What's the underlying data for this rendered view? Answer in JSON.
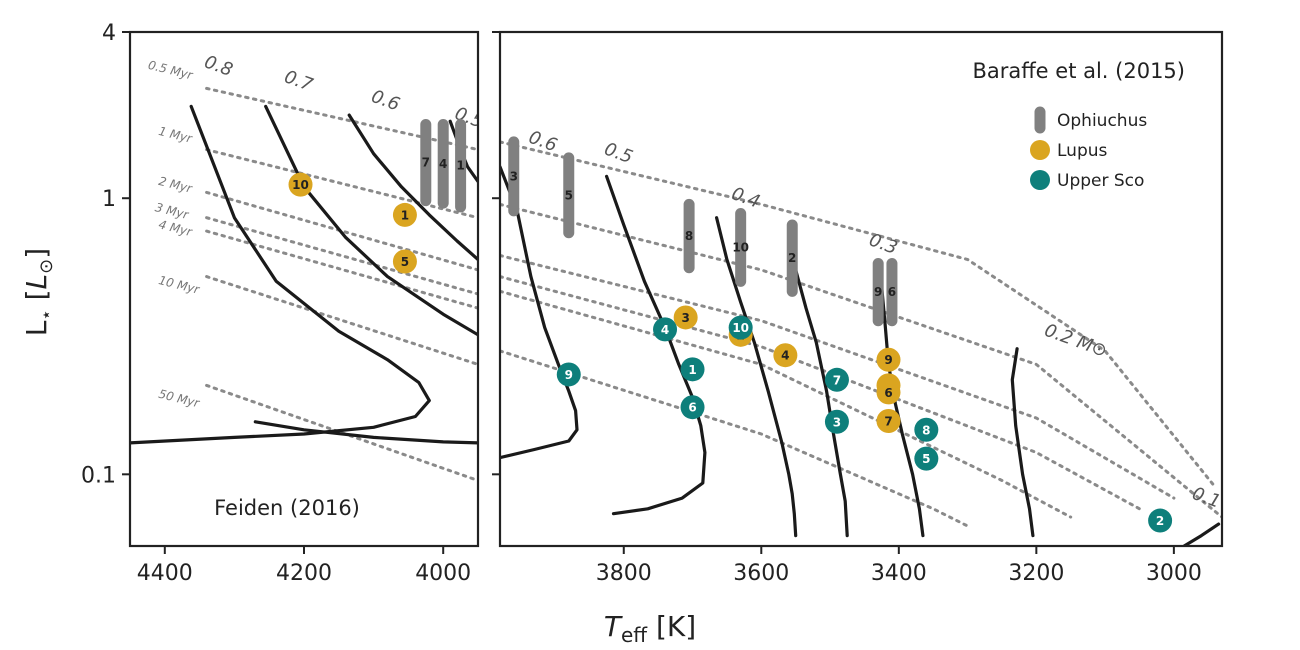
{
  "chart_data": {
    "type": "scatter",
    "figure": {
      "xlabel": "T_eff [K]",
      "ylabel": "L_⋆ [L_⊙]",
      "ylim": [
        0.055,
        4
      ],
      "yscale": "log",
      "yticks": [
        0.1,
        1,
        4
      ],
      "ytick_labels": [
        "0.1",
        "1",
        "4"
      ]
    },
    "colors": {
      "Ophiuchus": "#808080",
      "Lupus": "#DAA520",
      "Upper Sco": "#0E7F7B",
      "track": "#1a1a1a",
      "isochrone": "#8a8a8a"
    },
    "panels": [
      {
        "id": "left",
        "title": "Feiden (2016)",
        "xlim": [
          4450,
          3950
        ],
        "xticks": [
          4400,
          4200,
          4000
        ],
        "xtick_labels": [
          "4400",
          "4200",
          "4000"
        ],
        "mass_tracks": [
          {
            "label": "0.8",
            "points": [
              [
                4362,
                2.15
              ],
              [
                4300,
                0.85
              ],
              [
                4240,
                0.5
              ],
              [
                4150,
                0.33
              ],
              [
                4080,
                0.26
              ],
              [
                4035,
                0.215
              ],
              [
                4020,
                0.185
              ],
              [
                4040,
                0.162
              ],
              [
                4100,
                0.148
              ],
              [
                4200,
                0.14
              ],
              [
                4300,
                0.136
              ],
              [
                4450,
                0.13
              ]
            ]
          },
          {
            "label": "0.7",
            "points": [
              [
                4255,
                2.15
              ],
              [
                4200,
                1.1
              ],
              [
                4140,
                0.72
              ],
              [
                4080,
                0.52
              ],
              [
                4000,
                0.38
              ],
              [
                3950,
                0.32
              ]
            ]
          },
          {
            "label": "0.6",
            "points": [
              [
                4135,
                2.0
              ],
              [
                4100,
                1.45
              ],
              [
                4060,
                1.1
              ],
              [
                4020,
                0.87
              ],
              [
                3980,
                0.7
              ],
              [
                3950,
                0.6
              ]
            ]
          },
          {
            "label": "0.5",
            "points": [
              [
                3990,
                1.9
              ],
              [
                3975,
                1.5
              ],
              [
                3965,
                1.3
              ],
              [
                3950,
                1.15
              ]
            ]
          },
          {
            "label": "",
            "points": [
              [
                4270,
                0.155
              ],
              [
                4200,
                0.145
              ],
              [
                4100,
                0.136
              ],
              [
                4000,
                0.131
              ],
              [
                3950,
                0.13
              ]
            ]
          }
        ],
        "mass_labels": [
          {
            "text": "0.8",
            "x": 4345,
            "y": 3.0
          },
          {
            "text": "0.7",
            "x": 4230,
            "y": 2.65
          },
          {
            "text": "0.6",
            "x": 4105,
            "y": 2.25
          },
          {
            "text": "0.5",
            "x": 3985,
            "y": 1.95
          }
        ],
        "isochrones": [
          {
            "label": "0.5 Myr",
            "points": [
              [
                4340,
                2.5
              ],
              [
                3950,
                1.5
              ]
            ]
          },
          {
            "label": "1 Myr",
            "points": [
              [
                4340,
                1.5
              ],
              [
                3950,
                0.85
              ]
            ]
          },
          {
            "label": "2 Myr",
            "points": [
              [
                4340,
                1.05
              ],
              [
                3950,
                0.55
              ]
            ]
          },
          {
            "label": "3 Myr",
            "points": [
              [
                4340,
                0.85
              ],
              [
                3950,
                0.45
              ]
            ]
          },
          {
            "label": "4 Myr",
            "points": [
              [
                4340,
                0.76
              ],
              [
                3950,
                0.4
              ]
            ]
          },
          {
            "label": "10 Myr",
            "points": [
              [
                4340,
                0.52
              ],
              [
                3950,
                0.25
              ]
            ]
          },
          {
            "label": "50 Myr",
            "points": [
              [
                4340,
                0.21
              ],
              [
                3950,
                0.095
              ]
            ]
          }
        ],
        "isochrone_labels": [
          {
            "text": "0.5 Myr",
            "x": 4425,
            "y": 2.95
          },
          {
            "text": "1 Myr",
            "x": 4410,
            "y": 1.7
          },
          {
            "text": "2 Myr",
            "x": 4410,
            "y": 1.12
          },
          {
            "text": "3 Myr",
            "x": 4415,
            "y": 0.9
          },
          {
            "text": "4 Myr",
            "x": 4410,
            "y": 0.78
          },
          {
            "text": "10 Myr",
            "x": 4410,
            "y": 0.49
          },
          {
            "text": "50 Myr",
            "x": 4410,
            "y": 0.19
          }
        ],
        "ophiuchus": [
          {
            "label": "7",
            "x": 4025,
            "ylow": 0.98,
            "yhigh": 1.85
          },
          {
            "label": "4",
            "x": 4000,
            "ylow": 0.96,
            "yhigh": 1.85
          },
          {
            "label": "1",
            "x": 3975,
            "ylow": 0.93,
            "yhigh": 1.85
          }
        ],
        "lupus": [
          {
            "label": "10",
            "x": 4205,
            "y": 1.12
          },
          {
            "label": "1",
            "x": 4055,
            "y": 0.87
          },
          {
            "label": "5",
            "x": 4055,
            "y": 0.59
          }
        ],
        "upper_sco": []
      },
      {
        "id": "right",
        "title": "Baraffe et al. (2015)",
        "xlim": [
          3980,
          2930
        ],
        "xticks": [
          3800,
          3600,
          3400,
          3200,
          3000
        ],
        "xtick_labels": [
          "3800",
          "3600",
          "3400",
          "3200",
          "3000"
        ],
        "mass_tracks": [
          {
            "label": "0.6",
            "points": [
              [
                3980,
                1.3
              ],
              [
                3955,
                0.9
              ],
              [
                3935,
                0.52
              ],
              [
                3915,
                0.34
              ],
              [
                3895,
                0.25
              ],
              [
                3880,
                0.2
              ],
              [
                3870,
                0.17
              ],
              [
                3868,
                0.145
              ],
              [
                3880,
                0.132
              ],
              [
                3930,
                0.123
              ],
              [
                3980,
                0.115
              ]
            ]
          },
          {
            "label": "0.5",
            "points": [
              [
                3825,
                1.2
              ],
              [
                3800,
                0.8
              ],
              [
                3770,
                0.5
              ],
              [
                3740,
                0.34
              ],
              [
                3720,
                0.25
              ],
              [
                3700,
                0.19
              ],
              [
                3688,
                0.15
              ],
              [
                3682,
                0.12
              ],
              [
                3685,
                0.093
              ],
              [
                3715,
                0.082
              ],
              [
                3765,
                0.075
              ],
              [
                3815,
                0.072
              ]
            ]
          },
          {
            "label": "0.4",
            "points": [
              [
                3665,
                0.85
              ],
              [
                3650,
                0.6
              ],
              [
                3630,
                0.42
              ],
              [
                3610,
                0.3
              ],
              [
                3590,
                0.2
              ],
              [
                3570,
                0.13
              ],
              [
                3560,
                0.1
              ],
              [
                3555,
                0.085
              ],
              [
                3552,
                0.072
              ],
              [
                3550,
                0.06
              ]
            ]
          },
          {
            "label": "0.3",
            "points": [
              [
                3550,
                0.55
              ],
              [
                3535,
                0.4
              ],
              [
                3520,
                0.3
              ],
              [
                3505,
                0.2
              ],
              [
                3495,
                0.14
              ],
              [
                3485,
                0.1
              ],
              [
                3478,
                0.08
              ],
              [
                3475,
                0.06
              ]
            ]
          },
          {
            "label": "",
            "points": [
              [
                3425,
                0.48
              ],
              [
                3420,
                0.35
              ],
              [
                3415,
                0.25
              ],
              [
                3405,
                0.18
              ],
              [
                3395,
                0.14
              ],
              [
                3380,
                0.1
              ],
              [
                3370,
                0.075
              ],
              [
                3365,
                0.06
              ]
            ]
          },
          {
            "label": "0.2",
            "points": [
              [
                3228,
                0.285
              ],
              [
                3235,
                0.22
              ],
              [
                3230,
                0.15
              ],
              [
                3220,
                0.1
              ],
              [
                3210,
                0.075
              ],
              [
                3205,
                0.06
              ]
            ]
          },
          {
            "label": "0.1",
            "points": [
              [
                2985,
                0.055
              ],
              [
                2960,
                0.06
              ],
              [
                2935,
                0.066
              ]
            ]
          }
        ],
        "mass_labels": [
          {
            "text": "0.6",
            "x": 3940,
            "y": 1.6
          },
          {
            "text": "0.5",
            "x": 3830,
            "y": 1.45
          },
          {
            "text": "0.4",
            "x": 3645,
            "y": 1.0
          },
          {
            "text": "0.3",
            "x": 3445,
            "y": 0.68
          },
          {
            "text": "0.2 M⊙",
            "x": 3190,
            "y": 0.32
          },
          {
            "text": "0.1",
            "x": 2975,
            "y": 0.082
          }
        ],
        "isochrones": [
          {
            "label": "",
            "points": [
              [
                3980,
                1.6
              ],
              [
                3600,
                0.95
              ],
              [
                3300,
                0.6
              ],
              [
                3100,
                0.28
              ],
              [
                2940,
                0.09
              ]
            ]
          },
          {
            "label": "",
            "points": [
              [
                3980,
                0.95
              ],
              [
                3600,
                0.55
              ],
              [
                3200,
                0.25
              ],
              [
                2930,
                0.07
              ]
            ]
          },
          {
            "label": "",
            "points": [
              [
                3980,
                0.62
              ],
              [
                3600,
                0.36
              ],
              [
                3200,
                0.16
              ],
              [
                3000,
                0.082
              ]
            ]
          },
          {
            "label": "",
            "points": [
              [
                3980,
                0.52
              ],
              [
                3600,
                0.29
              ],
              [
                3200,
                0.12
              ],
              [
                3050,
                0.075
              ]
            ]
          },
          {
            "label": "",
            "points": [
              [
                3980,
                0.46
              ],
              [
                3600,
                0.25
              ],
              [
                3250,
                0.095
              ],
              [
                3150,
                0.07
              ]
            ]
          },
          {
            "label": "",
            "points": [
              [
                3980,
                0.28
              ],
              [
                3600,
                0.14
              ],
              [
                3350,
                0.075
              ],
              [
                3300,
                0.065
              ]
            ]
          }
        ],
        "isochrone_labels": [],
        "ophiuchus": [
          {
            "label": "3",
            "x": 3960,
            "ylow": 0.9,
            "yhigh": 1.6
          },
          {
            "label": "5",
            "x": 3880,
            "ylow": 0.75,
            "yhigh": 1.4
          },
          {
            "label": "8",
            "x": 3705,
            "ylow": 0.56,
            "yhigh": 0.95
          },
          {
            "label": "10",
            "x": 3630,
            "ylow": 0.5,
            "yhigh": 0.88
          },
          {
            "label": "2",
            "x": 3555,
            "ylow": 0.46,
            "yhigh": 0.8
          },
          {
            "label": "9",
            "x": 3430,
            "ylow": 0.36,
            "yhigh": 0.58
          },
          {
            "label": "6",
            "x": 3410,
            "ylow": 0.36,
            "yhigh": 0.58
          }
        ],
        "lupus": [
          {
            "label": "3",
            "x": 3710,
            "y": 0.37
          },
          {
            "label": "2",
            "x": 3630,
            "y": 0.32
          },
          {
            "label": "4",
            "x": 3565,
            "y": 0.27
          },
          {
            "label": "9",
            "x": 3415,
            "y": 0.26
          },
          {
            "label": "8",
            "x": 3415,
            "y": 0.21
          },
          {
            "label": "6",
            "x": 3415,
            "y": 0.198
          },
          {
            "label": "7",
            "x": 3415,
            "y": 0.156
          }
        ],
        "upper_sco": [
          {
            "label": "9",
            "x": 3880,
            "y": 0.23
          },
          {
            "label": "4",
            "x": 3740,
            "y": 0.335
          },
          {
            "label": "10",
            "x": 3630,
            "y": 0.34
          },
          {
            "label": "1",
            "x": 3700,
            "y": 0.24
          },
          {
            "label": "6",
            "x": 3700,
            "y": 0.175
          },
          {
            "label": "7",
            "x": 3490,
            "y": 0.22
          },
          {
            "label": "3",
            "x": 3490,
            "y": 0.155
          },
          {
            "label": "8",
            "x": 3360,
            "y": 0.145
          },
          {
            "label": "5",
            "x": 3360,
            "y": 0.114
          },
          {
            "label": "2",
            "x": 3020,
            "y": 0.068
          }
        ]
      }
    ],
    "legend": {
      "position": "top-right",
      "entries": [
        {
          "label": "Ophiuchus",
          "marker": "bar"
        },
        {
          "label": "Lupus",
          "marker": "circle"
        },
        {
          "label": "Upper Sco",
          "marker": "circle"
        }
      ]
    }
  }
}
